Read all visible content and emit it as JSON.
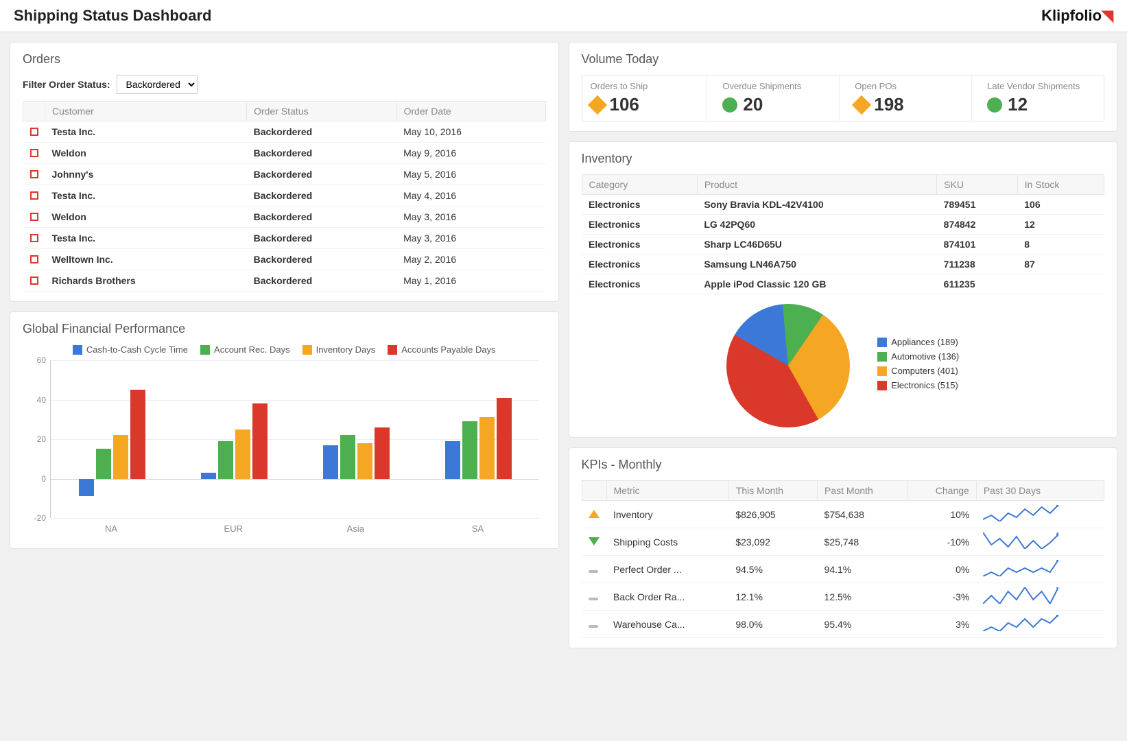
{
  "header": {
    "title": "Shipping Status Dashboard",
    "brand": "Klipfolio"
  },
  "orders": {
    "title": "Orders",
    "filter_label": "Filter Order Status:",
    "filter_value": "Backordered",
    "columns": [
      "Customer",
      "Order Status",
      "Order Date"
    ],
    "rows": [
      {
        "customer": "Testa Inc.",
        "status": "Backordered",
        "date": "May 10, 2016"
      },
      {
        "customer": "Weldon",
        "status": "Backordered",
        "date": "May 9, 2016"
      },
      {
        "customer": "Johnny's",
        "status": "Backordered",
        "date": "May 5, 2016"
      },
      {
        "customer": "Testa Inc.",
        "status": "Backordered",
        "date": "May 4, 2016"
      },
      {
        "customer": "Weldon",
        "status": "Backordered",
        "date": "May 3, 2016"
      },
      {
        "customer": "Testa Inc.",
        "status": "Backordered",
        "date": "May 3, 2016"
      },
      {
        "customer": "Welltown Inc.",
        "status": "Backordered",
        "date": "May 2, 2016"
      },
      {
        "customer": "Richards Brothers",
        "status": "Backordered",
        "date": "May 1, 2016"
      }
    ],
    "row_marker_color": "#d9382a"
  },
  "volume": {
    "title": "Volume Today",
    "items": [
      {
        "label": "Orders to Ship",
        "value": "106",
        "shape": "diamond",
        "color": "#f5a623"
      },
      {
        "label": "Overdue Shipments",
        "value": "20",
        "shape": "circle",
        "color": "#4caf50"
      },
      {
        "label": "Open POs",
        "value": "198",
        "shape": "diamond",
        "color": "#f5a623"
      },
      {
        "label": "Late Vendor Shipments",
        "value": "12",
        "shape": "circle",
        "color": "#4caf50"
      }
    ]
  },
  "inventory": {
    "title": "Inventory",
    "columns": [
      "Category",
      "Product",
      "SKU",
      "In Stock"
    ],
    "rows": [
      [
        "Electronics",
        "Sony Bravia KDL-42V4100",
        "789451",
        "106"
      ],
      [
        "Electronics",
        "LG 42PQ60",
        "874842",
        "12"
      ],
      [
        "Electronics",
        "Sharp LC46D65U",
        "874101",
        "8"
      ],
      [
        "Electronics",
        "Samsung LN46A750",
        "711238",
        "87"
      ],
      [
        "Electronics",
        "Apple iPod Classic 120 GB",
        "611235",
        ""
      ]
    ],
    "pie": {
      "type": "pie",
      "slices": [
        {
          "label": "Appliances",
          "value": 189,
          "color": "#3c78d8"
        },
        {
          "label": "Automotive",
          "value": 136,
          "color": "#4caf50"
        },
        {
          "label": "Computers",
          "value": 401,
          "color": "#f5a623"
        },
        {
          "label": "Electronics",
          "value": 515,
          "color": "#d9382a"
        }
      ]
    }
  },
  "gfp": {
    "title": "Global Financial Performance",
    "type": "bar",
    "series": [
      {
        "name": "Cash-to-Cash Cycle Time",
        "color": "#3c78d8"
      },
      {
        "name": "Account Rec. Days",
        "color": "#4caf50"
      },
      {
        "name": "Inventory Days",
        "color": "#f5a623"
      },
      {
        "name": "Accounts Payable Days",
        "color": "#d9382a"
      }
    ],
    "categories": [
      "NA",
      "EUR",
      "Asia",
      "SA"
    ],
    "values": [
      [
        -9,
        15,
        22,
        45
      ],
      [
        3,
        19,
        25,
        38
      ],
      [
        17,
        22,
        18,
        26
      ],
      [
        19,
        29,
        31,
        41
      ]
    ],
    "ylim": [
      -20,
      60
    ],
    "ytick_step": 20,
    "grid_color": "#eeeeee"
  },
  "kpis": {
    "title": "KPIs - Monthly",
    "columns": [
      "",
      "Metric",
      "This Month",
      "Past Month",
      "Change",
      "Past 30 Days"
    ],
    "rows": [
      {
        "icon": "up",
        "metric": "Inventory",
        "this": "$826,905",
        "past": "$754,638",
        "change": "10%",
        "spark": [
          12,
          14,
          11,
          15,
          13,
          17,
          14,
          18,
          15,
          19
        ]
      },
      {
        "icon": "down",
        "metric": "Shipping Costs",
        "this": "$23,092",
        "past": "$25,748",
        "change": "-10%",
        "spark": [
          18,
          12,
          15,
          11,
          16,
          10,
          14,
          10,
          13,
          17
        ]
      },
      {
        "icon": "dash",
        "metric": "Perfect Order ...",
        "this": "94.5%",
        "past": "94.1%",
        "change": "0%",
        "spark": [
          10,
          11,
          10,
          12,
          11,
          12,
          11,
          12,
          11,
          14
        ]
      },
      {
        "icon": "dash",
        "metric": "Back Order Ra...",
        "this": "12.1%",
        "past": "12.5%",
        "change": "-3%",
        "spark": [
          11,
          13,
          11,
          14,
          12,
          15,
          12,
          14,
          11,
          15
        ]
      },
      {
        "icon": "dash",
        "metric": "Warehouse Ca...",
        "this": "98.0%",
        "past": "95.4%",
        "change": "3%",
        "spark": [
          12,
          13,
          12,
          14,
          13,
          15,
          13,
          15,
          14,
          16
        ]
      }
    ],
    "spark_color": "#3c78d8"
  }
}
